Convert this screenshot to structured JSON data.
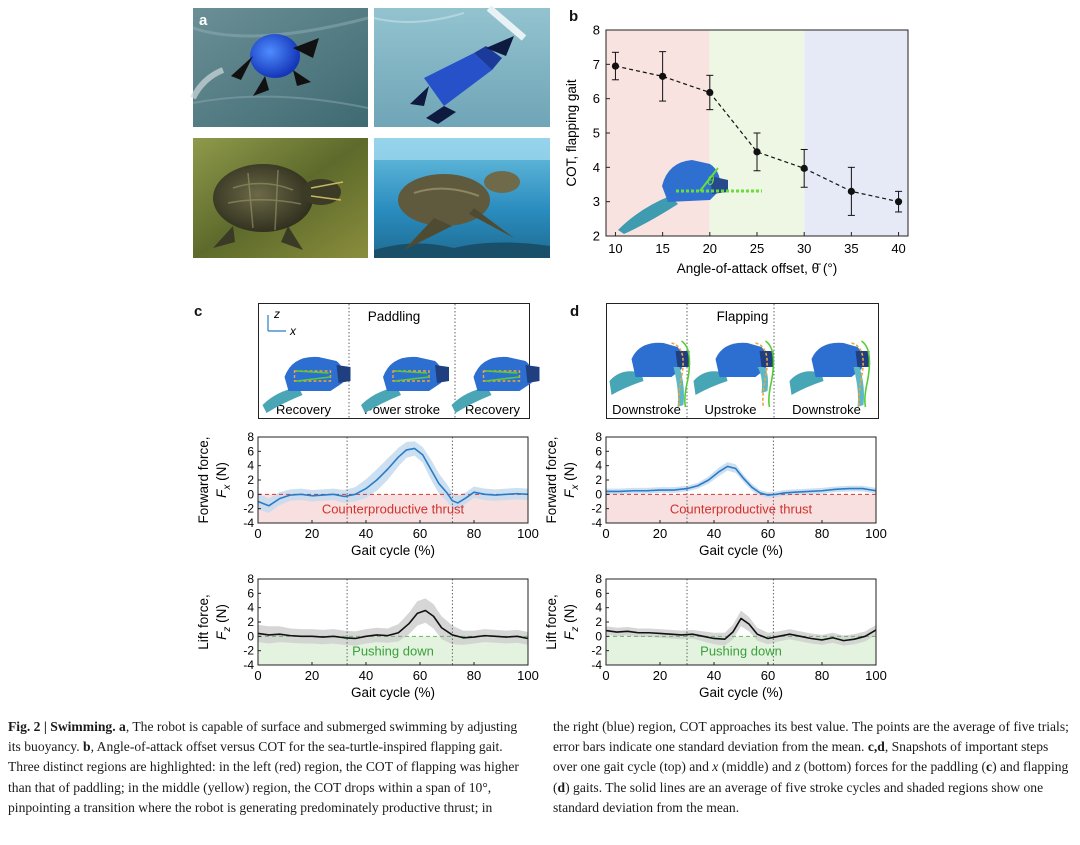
{
  "panels": {
    "a": {
      "letter": "a"
    },
    "b": {
      "letter": "b"
    },
    "c": {
      "letter": "c"
    },
    "d": {
      "letter": "d"
    }
  },
  "chart_data": [
    {
      "id": "b",
      "type": "scatter",
      "ylabel": "COT, flapping gait",
      "xlabel": "Angle-of-attack offset, θ̄ (°)",
      "xlim": [
        9,
        41
      ],
      "ylim": [
        2,
        8
      ],
      "xticks": [
        10,
        15,
        20,
        25,
        30,
        35,
        40
      ],
      "yticks": [
        2,
        3,
        4,
        5,
        6,
        7,
        8
      ],
      "x": [
        10,
        15,
        20,
        25,
        30,
        35,
        40
      ],
      "y": [
        6.95,
        6.65,
        6.18,
        4.45,
        3.97,
        3.3,
        3.0
      ],
      "yerr": [
        0.4,
        0.72,
        0.5,
        0.55,
        0.55,
        0.7,
        0.3
      ],
      "regions": [
        {
          "from": 9,
          "to": 20,
          "color": "#f9e3e1"
        },
        {
          "from": 20,
          "to": 30,
          "color": "#eef6e4"
        },
        {
          "from": 30,
          "to": 41,
          "color": "#e6eaf6"
        }
      ],
      "inset_label": "θ"
    },
    {
      "id": "c-top",
      "type": "line",
      "title": "Paddling",
      "phases": [
        "Recovery",
        "Power stroke",
        "Recovery"
      ],
      "axes": [
        "z",
        "x"
      ],
      "ylabel": "Forward force,",
      "ylabel2": "F",
      "ylabel_sub": "x",
      "ylabel_unit": " (N)",
      "xlabel": "Gait cycle (%)",
      "xlim": [
        0,
        100
      ],
      "ylim": [
        -4,
        8
      ],
      "xticks": [
        0,
        20,
        40,
        60,
        80,
        100
      ],
      "yticks": [
        -4,
        -2,
        0,
        2,
        4,
        6,
        8
      ],
      "dividers": [
        33,
        72
      ],
      "region_label": "Counterproductive thrust",
      "x": [
        0,
        4,
        8,
        12,
        16,
        20,
        24,
        28,
        32,
        36,
        40,
        44,
        48,
        52,
        55,
        58,
        61,
        64,
        67,
        70,
        72,
        74,
        77,
        80,
        84,
        88,
        92,
        96,
        100
      ],
      "y": [
        -1.0,
        -1.6,
        -0.6,
        -0.1,
        0.0,
        -0.2,
        -0.1,
        0.0,
        -0.3,
        0.0,
        0.8,
        2.0,
        3.5,
        5.2,
        6.2,
        6.4,
        5.5,
        3.5,
        1.5,
        0.2,
        -0.9,
        -1.2,
        -0.5,
        0.3,
        0.0,
        -0.1,
        0.0,
        0.1,
        0.0
      ],
      "band": [
        1.1,
        1.0,
        0.9,
        0.8,
        0.8,
        0.8,
        0.8,
        0.8,
        0.9,
        1.0,
        1.3,
        1.5,
        1.5,
        1.3,
        1.1,
        1.0,
        1.1,
        1.4,
        1.4,
        1.2,
        1.1,
        1.0,
        0.8,
        0.8,
        0.8,
        0.8,
        0.8,
        0.8,
        0.8
      ],
      "line_color": "#2a7cc7",
      "band_color": "#c4daef",
      "region_color": "#f9e0e0"
    },
    {
      "id": "c-bottom",
      "type": "line",
      "ylabel": "Lift force,",
      "ylabel2": "F",
      "ylabel_sub": "z",
      "ylabel_unit": " (N)",
      "xlabel": "Gait cycle (%)",
      "xlim": [
        0,
        100
      ],
      "ylim": [
        -4,
        8
      ],
      "xticks": [
        0,
        20,
        40,
        60,
        80,
        100
      ],
      "yticks": [
        -4,
        -2,
        0,
        2,
        4,
        6,
        8
      ],
      "dividers": [
        33,
        72
      ],
      "region_label": "Pushing down",
      "x": [
        0,
        4,
        8,
        12,
        16,
        20,
        24,
        28,
        32,
        36,
        40,
        44,
        48,
        52,
        56,
        59,
        62,
        65,
        68,
        72,
        76,
        80,
        84,
        88,
        92,
        96,
        100
      ],
      "y": [
        0.4,
        0.2,
        0.3,
        0.1,
        0.0,
        0.0,
        -0.1,
        0.0,
        -0.2,
        -0.3,
        0.0,
        0.2,
        0.1,
        0.5,
        1.8,
        3.2,
        3.6,
        2.8,
        1.2,
        0.2,
        -0.2,
        -0.1,
        0.1,
        0.0,
        -0.1,
        0.0,
        -0.3
      ],
      "band": [
        1.2,
        1.2,
        1.1,
        1.0,
        1.0,
        1.0,
        1.0,
        1.0,
        1.0,
        1.0,
        1.0,
        1.0,
        1.0,
        1.2,
        1.5,
        1.7,
        1.7,
        1.7,
        1.6,
        1.3,
        1.0,
        0.9,
        0.9,
        0.9,
        0.9,
        0.9,
        0.9
      ],
      "line_color": "#111111",
      "band_color": "#cfcfcf",
      "region_color": "#e3f3df"
    },
    {
      "id": "d-top",
      "type": "line",
      "title": "Flapping",
      "phases": [
        "Downstroke",
        "Upstroke",
        "Downstroke"
      ],
      "ylabel": "Forward force,",
      "ylabel2": "F",
      "ylabel_sub": "x",
      "ylabel_unit": " (N)",
      "xlabel": "Gait cycle (%)",
      "xlim": [
        0,
        100
      ],
      "ylim": [
        -4,
        8
      ],
      "xticks": [
        0,
        20,
        40,
        60,
        80,
        100
      ],
      "yticks": [
        -4,
        -2,
        0,
        2,
        4,
        6,
        8
      ],
      "dividers": [
        30,
        62
      ],
      "region_label": "Counterproductive thrust",
      "x": [
        0,
        5,
        10,
        15,
        20,
        25,
        30,
        34,
        38,
        42,
        45,
        48,
        51,
        54,
        57,
        60,
        63,
        66,
        70,
        75,
        80,
        85,
        90,
        95,
        100
      ],
      "y": [
        0.4,
        0.4,
        0.5,
        0.5,
        0.6,
        0.6,
        0.8,
        1.2,
        2.0,
        3.2,
        3.9,
        3.6,
        2.2,
        1.0,
        0.2,
        -0.1,
        0.0,
        0.2,
        0.3,
        0.4,
        0.5,
        0.7,
        0.8,
        0.8,
        0.5
      ],
      "band": [
        0.4,
        0.4,
        0.4,
        0.4,
        0.4,
        0.4,
        0.4,
        0.4,
        0.5,
        0.6,
        0.6,
        0.6,
        0.5,
        0.5,
        0.4,
        0.4,
        0.4,
        0.4,
        0.4,
        0.4,
        0.4,
        0.4,
        0.4,
        0.4,
        0.4
      ],
      "line_color": "#2a7cc7",
      "band_color": "#c4daef",
      "region_color": "#f9e0e0"
    },
    {
      "id": "d-bottom",
      "type": "line",
      "ylabel": "Lift force,",
      "ylabel2": "F",
      "ylabel_sub": "z",
      "ylabel_unit": " (N)",
      "xlabel": "Gait cycle (%)",
      "xlim": [
        0,
        100
      ],
      "ylim": [
        -4,
        8
      ],
      "xticks": [
        0,
        20,
        40,
        60,
        80,
        100
      ],
      "yticks": [
        -4,
        -2,
        0,
        2,
        4,
        6,
        8
      ],
      "dividers": [
        30,
        62
      ],
      "region_label": "Pushing down",
      "x": [
        0,
        4,
        8,
        12,
        16,
        20,
        24,
        28,
        32,
        36,
        40,
        44,
        47,
        50,
        53,
        56,
        60,
        64,
        68,
        72,
        76,
        80,
        84,
        88,
        92,
        96,
        100
      ],
      "y": [
        0.8,
        0.6,
        0.7,
        0.5,
        0.5,
        0.4,
        0.3,
        0.2,
        0.3,
        0.0,
        -0.3,
        -0.4,
        0.6,
        2.5,
        1.7,
        0.3,
        -0.3,
        0.0,
        0.3,
        0.0,
        -0.3,
        -0.5,
        -0.2,
        -0.6,
        -0.4,
        0.0,
        0.9
      ],
      "band": [
        0.6,
        0.6,
        0.6,
        0.6,
        0.6,
        0.6,
        0.6,
        0.6,
        0.6,
        0.7,
        0.8,
        0.9,
        1.0,
        1.1,
        1.0,
        0.9,
        0.8,
        0.7,
        0.7,
        0.7,
        0.7,
        0.7,
        0.7,
        0.7,
        0.7,
        0.7,
        0.7
      ],
      "line_color": "#111111",
      "band_color": "#cfcfcf",
      "region_color": "#e3f3df"
    }
  ],
  "caption": {
    "lead": "Fig. 2 | Swimming.",
    "a": " a",
    "t1": ", The robot is capable of surface and submerged swimming by adjusting its buoyancy. ",
    "b": "b",
    "t2": ", Angle-of-attack offset versus COT for the sea-turtle-inspired flapping gait. Three distinct regions are highlighted: in the left (red) region, the COT of flapping was higher than that of paddling; in the middle (yellow) region, the COT drops within a span of 10°, pinpointing a transition where the robot is generating predominately productive thrust; in",
    "t3": "the right (blue) region, COT approaches its best value. The points are the average of five trials; error bars indicate one standard deviation from the mean. ",
    "cd": "c,d",
    "t4": ", Snapshots of important steps over one gait cycle (top) and ",
    "x": "x",
    "t5": " (middle) and ",
    "z": "z",
    "t6": " (bottom) forces for the paddling (",
    "c2": "c",
    "t7": ") and flapping (",
    "d2": "d",
    "t8": ") gaits. The solid lines are an average of five stroke cycles and shaded regions show one standard deviation from the mean."
  }
}
